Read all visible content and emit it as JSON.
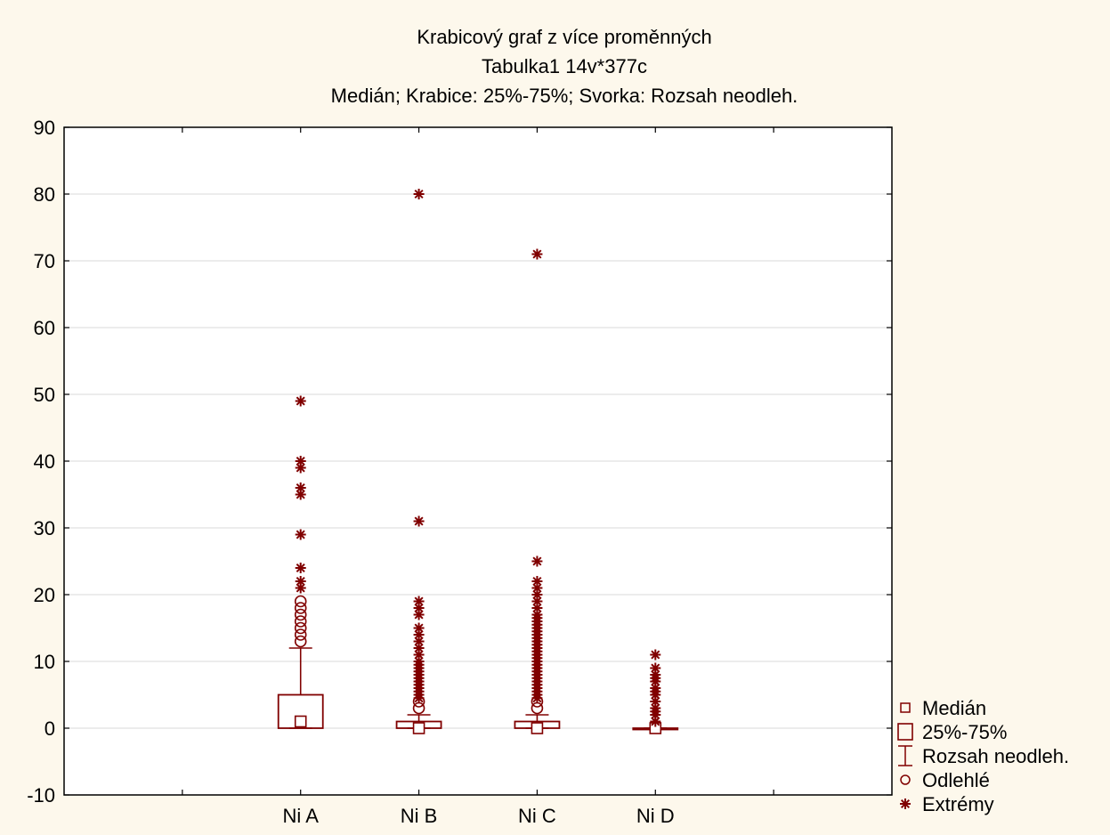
{
  "colors": {
    "background": "#fdf8ec",
    "plot_background": "#ffffff",
    "series": "#800000",
    "grid": "#d9d9d9",
    "axis": "#000000"
  },
  "chart_data": {
    "type": "box",
    "title": "Krabicový graf z více proměnných",
    "subtitle": "Tabulka1 14v*377c",
    "subtitle2": "Medián; Krabice: 25%-75%; Svorka: Rozsah neodleh.",
    "ylim": [
      -10,
      90
    ],
    "yticks": [
      -10,
      0,
      10,
      20,
      30,
      40,
      50,
      60,
      70,
      80,
      90
    ],
    "grid": true,
    "legend_position": "right-bottom",
    "legend": [
      {
        "label": "Medián",
        "symbol": "median"
      },
      {
        "label": "25%-75%",
        "symbol": "box"
      },
      {
        "label": "Rozsah neodleh.",
        "symbol": "whisker"
      },
      {
        "label": "Odlehlé",
        "symbol": "outlier"
      },
      {
        "label": "Extrémy",
        "symbol": "extreme"
      }
    ],
    "categories": [
      "Ni A",
      "Ni B",
      "Ni C",
      "Ni D"
    ],
    "boxes": [
      {
        "name": "Ni A",
        "median": 1,
        "q1": 0,
        "q3": 5,
        "whisker_low": 0,
        "whisker_high": 12,
        "outliers": [
          13,
          14,
          15,
          16,
          17,
          18,
          19
        ],
        "extremes": [
          21,
          22,
          24,
          29,
          35,
          36,
          39,
          40,
          49
        ]
      },
      {
        "name": "Ni B",
        "median": 0,
        "q1": 0,
        "q3": 1,
        "whisker_low": 0,
        "whisker_high": 2,
        "outliers": [
          3,
          4
        ],
        "extremes": [
          4.5,
          5,
          5.5,
          6,
          6.5,
          7,
          7.5,
          8,
          8.5,
          9,
          9.5,
          10,
          11,
          12,
          13,
          14,
          15,
          17,
          18,
          19,
          31,
          80
        ]
      },
      {
        "name": "Ni C",
        "median": 0,
        "q1": 0,
        "q3": 1,
        "whisker_low": 0,
        "whisker_high": 2,
        "outliers": [
          3,
          4
        ],
        "extremes": [
          4.5,
          5,
          5.5,
          6,
          6.5,
          7,
          7.5,
          8,
          8.5,
          9,
          9.5,
          10,
          10.5,
          11,
          11.5,
          12,
          12.5,
          13,
          13.5,
          14,
          14.5,
          15,
          15.5,
          16,
          16.5,
          17,
          18,
          19,
          20,
          21,
          22,
          25,
          71
        ]
      },
      {
        "name": "Ni D",
        "median": 0,
        "q1": 0,
        "q3": 0,
        "whisker_low": 0,
        "whisker_high": 0,
        "outliers": [],
        "extremes": [
          1,
          2,
          2.5,
          3,
          4,
          5,
          5.5,
          6,
          7,
          7.5,
          8,
          9,
          11
        ]
      }
    ]
  }
}
